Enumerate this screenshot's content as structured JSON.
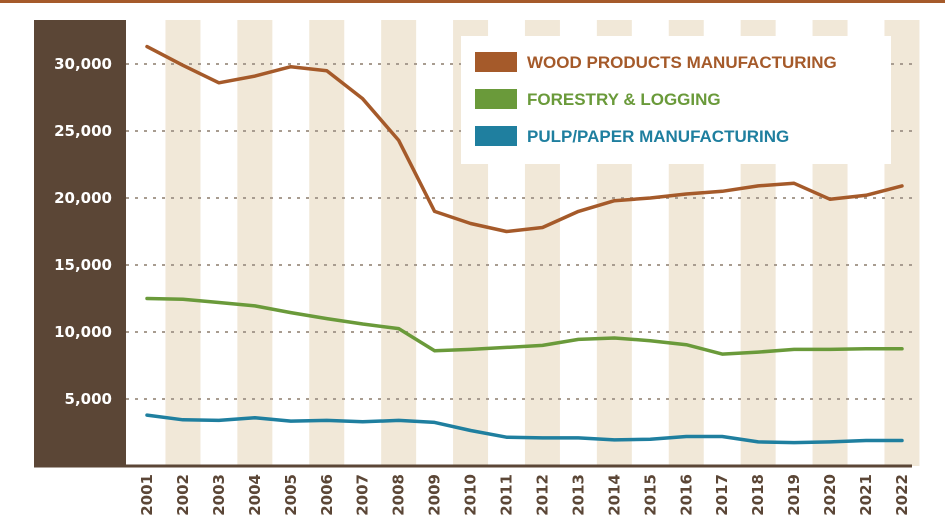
{
  "chart_data": {
    "type": "line",
    "categories": [
      "2001",
      "2002",
      "2003",
      "2004",
      "2005",
      "2006",
      "2007",
      "2008",
      "2009",
      "2010",
      "2011",
      "2012",
      "2013",
      "2014",
      "2015",
      "2016",
      "2017",
      "2018",
      "2019",
      "2020",
      "2021",
      "2022"
    ],
    "ylim": [
      0,
      32000
    ],
    "yticks": [
      "5,000",
      "10,000",
      "15,000",
      "20,000",
      "25,000",
      "30,000"
    ],
    "ytick_values": [
      5000,
      10000,
      15000,
      20000,
      25000,
      30000
    ],
    "grid": true,
    "legend_position": "top-right",
    "series": [
      {
        "name": "WOOD PRODUCTS MANUFACTURING",
        "color": "#a55a2a",
        "values": [
          31300,
          29900,
          28600,
          29100,
          29800,
          29500,
          27400,
          24300,
          19000,
          18100,
          17500,
          17800,
          19000,
          19800,
          20000,
          20300,
          20500,
          20900,
          21100,
          19900,
          20200,
          20900
        ]
      },
      {
        "name": "FORESTRY & LOGGING",
        "color": "#6a9a3a",
        "values": [
          12500,
          12450,
          12200,
          11950,
          11450,
          11000,
          10600,
          10250,
          8600,
          8700,
          8850,
          9000,
          9450,
          9550,
          9350,
          9050,
          8350,
          8500,
          8700,
          8700,
          8750,
          8750
        ]
      },
      {
        "name": "PULP/PAPER MANUFACTURING",
        "color": "#1f7f9f",
        "values": [
          3800,
          3450,
          3400,
          3600,
          3350,
          3400,
          3300,
          3400,
          3250,
          2650,
          2150,
          2100,
          2100,
          1950,
          2000,
          2200,
          2200,
          1800,
          1750,
          1800,
          1900,
          1900
        ]
      }
    ]
  },
  "colors": {
    "top_border": "#a55a2a",
    "axis_panel": "#5b4636",
    "band": "#f1e8d8",
    "grid": "#a89c90"
  }
}
